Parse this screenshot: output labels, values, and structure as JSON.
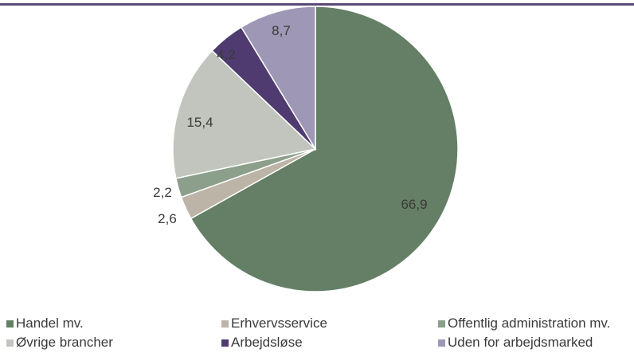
{
  "chart_data": {
    "type": "pie",
    "title": "",
    "start_angle_deg": 0,
    "direction": "clockwise",
    "legend_position": "bottom",
    "slices": [
      {
        "name": "Handel mv.",
        "value": 66.9,
        "label": "66,9",
        "color": "#647f65"
      },
      {
        "name": "Erhvervsservice",
        "value": 2.6,
        "label": "2,6",
        "color": "#bcb4a6"
      },
      {
        "name": "Offentlig administration mv.",
        "value": 2.2,
        "label": "2,2",
        "color": "#8b9f8b"
      },
      {
        "name": "Øvrige brancher",
        "value": 15.4,
        "label": "15,4",
        "color": "#c2c5bd"
      },
      {
        "name": "Arbejdsløse",
        "value": 4.2,
        "label": "4,2",
        "color": "#4f3b70"
      },
      {
        "name": "Uden for arbejdsmarked",
        "value": 8.7,
        "label": "8,7",
        "color": "#9e97b6"
      }
    ]
  }
}
